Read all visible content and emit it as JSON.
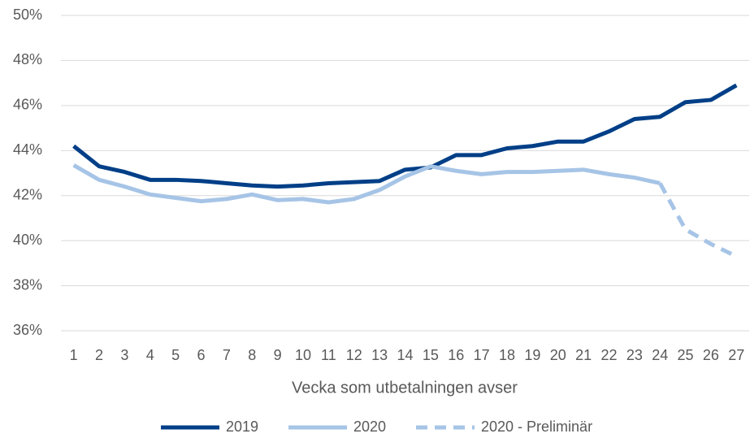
{
  "chart_data": {
    "type": "line",
    "xlabel": "Vecka som utbetalningen avser",
    "categories": [
      "1",
      "2",
      "3",
      "4",
      "5",
      "6",
      "7",
      "8",
      "9",
      "10",
      "11",
      "12",
      "13",
      "14",
      "15",
      "16",
      "17",
      "18",
      "19",
      "20",
      "21",
      "22",
      "23",
      "24",
      "25",
      "26",
      "27"
    ],
    "series": [
      {
        "name": "2019",
        "color": "#003f87",
        "dash": false,
        "values": [
          44.2,
          43.3,
          43.05,
          42.7,
          42.7,
          42.65,
          42.55,
          42.45,
          42.4,
          42.45,
          42.55,
          42.6,
          42.65,
          43.15,
          43.25,
          43.8,
          43.8,
          44.1,
          44.2,
          44.4,
          44.4,
          44.85,
          45.4,
          45.5,
          46.15,
          46.25,
          46.9
        ]
      },
      {
        "name": "2020",
        "color": "#a6c4e6",
        "dash": false,
        "values": [
          43.35,
          42.7,
          42.4,
          42.05,
          41.9,
          41.75,
          41.85,
          42.05,
          41.8,
          41.85,
          41.7,
          41.85,
          42.25,
          42.85,
          43.3,
          43.1,
          42.95,
          43.05,
          43.05,
          43.1,
          43.15,
          42.95,
          42.8,
          42.55,
          null,
          null,
          null
        ]
      },
      {
        "name": "2020 - Preliminär",
        "color": "#a6c4e6",
        "dash": true,
        "values": [
          null,
          null,
          null,
          null,
          null,
          null,
          null,
          null,
          null,
          null,
          null,
          null,
          null,
          null,
          null,
          null,
          null,
          null,
          null,
          null,
          null,
          null,
          null,
          42.55,
          40.5,
          39.85,
          39.3
        ]
      }
    ],
    "ylim": [
      36,
      50
    ],
    "yticks": [
      {
        "value": 36,
        "label": "36%"
      },
      {
        "value": 38,
        "label": "38%"
      },
      {
        "value": 40,
        "label": "40%"
      },
      {
        "value": 42,
        "label": "42%"
      },
      {
        "value": 44,
        "label": "44%"
      },
      {
        "value": 46,
        "label": "46%"
      },
      {
        "value": 48,
        "label": "48%"
      },
      {
        "value": 50,
        "label": "50%"
      }
    ],
    "grid": true,
    "legend": "bottom"
  }
}
